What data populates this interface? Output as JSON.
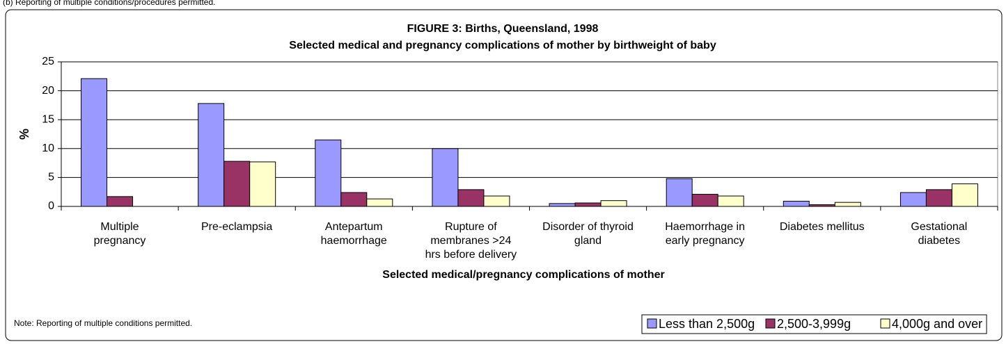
{
  "top_note": "(b) Reporting of multiple conditions/procedures permitted.",
  "chart_data": {
    "type": "bar",
    "title": "FIGURE 3: Births, Queensland, 1998",
    "subtitle": "Selected medical and pregnancy complications of mother by birthweight of baby",
    "y_label": "%",
    "x_label": "Selected medical/pregnancy complications of mother",
    "note": "Note: Reporting of multiple conditions permitted.",
    "categories": [
      "Multiple\npregnancy",
      "Pre-eclampsia",
      "Antepartum\nhaemorrhage",
      "Rupture of\nmembranes >24\nhrs before delivery",
      "Disorder of thyroid\ngland",
      "Haemorrhage in\nearly pregnancy",
      "Diabetes mellitus",
      "Gestational\ndiabetes"
    ],
    "series": [
      {
        "name": "Less than 2,500g",
        "color": "#9999ff",
        "values": [
          22.1,
          17.8,
          11.5,
          10.0,
          0.5,
          4.8,
          0.9,
          2.4
        ]
      },
      {
        "name": "2,500-3,999g",
        "color": "#993366",
        "values": [
          1.7,
          7.8,
          2.4,
          2.9,
          0.6,
          2.1,
          0.3,
          2.9
        ]
      },
      {
        "name": "4,000g and over",
        "color": "#ffffcc",
        "values": [
          0,
          7.7,
          1.3,
          1.8,
          1.0,
          1.8,
          0.7,
          3.9
        ]
      }
    ],
    "ylim": [
      0,
      25
    ],
    "yticks": [
      0,
      5,
      10,
      15,
      20,
      25
    ],
    "grid": true,
    "legend": "bottom-right"
  }
}
